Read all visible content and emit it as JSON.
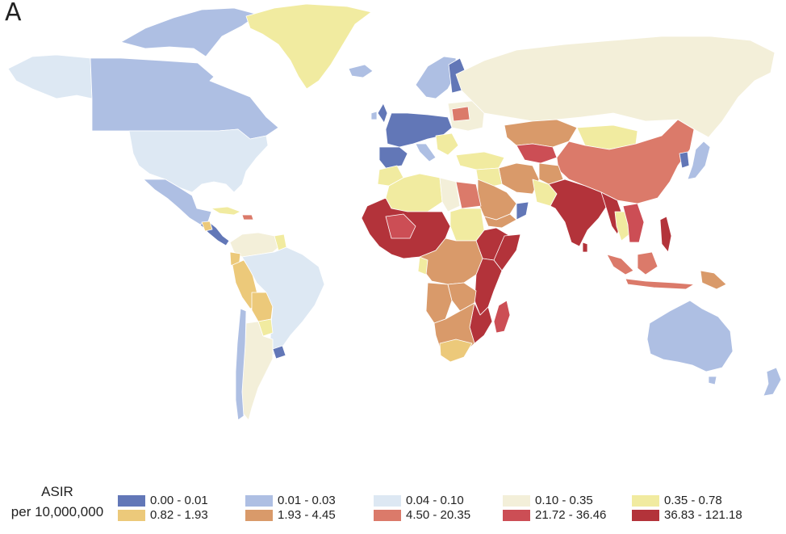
{
  "panel_label": "A",
  "legend": {
    "title_line1": "ASIR",
    "title_line2": "per 10,000,000",
    "items": [
      {
        "label": "0.00 - 0.01",
        "color": "#6277b7"
      },
      {
        "label": "0.01 - 0.03",
        "color": "#aebfe3"
      },
      {
        "label": "0.04 - 0.10",
        "color": "#dde8f3"
      },
      {
        "label": "0.10 - 0.35",
        "color": "#f3efd9"
      },
      {
        "label": "0.35 - 0.78",
        "color": "#f1eba0"
      },
      {
        "label": "0.82 - 1.93",
        "color": "#ecc97a"
      },
      {
        "label": "1.93 - 4.45",
        "color": "#d99a6a"
      },
      {
        "label": "4.50 - 20.35",
        "color": "#db7a6a"
      },
      {
        "label": "21.72 - 36.46",
        "color": "#cc4e55"
      },
      {
        "label": "36.83 - 121.18",
        "color": "#b3333a"
      }
    ]
  }
}
